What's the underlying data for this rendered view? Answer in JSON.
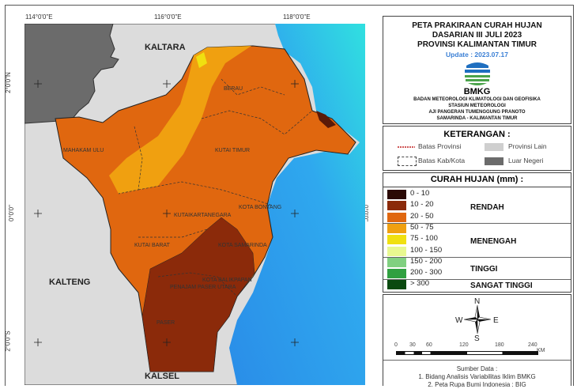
{
  "map": {
    "lon_labels": [
      "114°0'0\"E",
      "116°0'0\"E",
      "118°0'0\"E"
    ],
    "lat_labels": [
      "2°0'0\"N",
      "0°0'0\"",
      "2°0'0\"S"
    ],
    "regions": {
      "kaltara": "KALTARA",
      "kalteng": "KALTENG",
      "kalsel": "KALSEL",
      "berau": "BERAU",
      "mahakam_ulu": "MAHAKAM ULU",
      "kutai_timur": "KUTAI TIMUR",
      "kutai_kartanegara": "KUTAIKARTANEGARA",
      "kota_bontang": "KOTA BONTANG",
      "kutai_barat": "KUTAI BARAT",
      "kota_samarinda": "KOTA SAMARINDA",
      "kota_balikpapan": "KOTA BALIKPAPAN",
      "penajam": "PENAJAM PASER UTARA",
      "paser": "PASER"
    }
  },
  "title": {
    "line1": "PETA PRAKIRAAN CURAH HUJAN",
    "line2": "DASARIAN III JULI 2023",
    "line3": "PROVINSI KALIMANTAN TIMUR",
    "update": "Update : 2023.07.17",
    "logo_text": "BMKG",
    "org1": "BADAN METEOROLOGI KLIMATOLOGI DAN GEOFISIKA",
    "org2": "STASIUN METEOROLOGI",
    "org3": "AJI PANGERAN TUMENGGUNG PRANOTO",
    "org4": "SAMARINDA - KALIMANTAN TIMUR"
  },
  "keterangan": {
    "heading": "KETERANGAN :",
    "batas_provinsi": "Batas Provinsi",
    "batas_kab": "Batas Kab/Kota",
    "provinsi_lain": "Provinsi Lain",
    "luar_negeri": "Luar Negeri"
  },
  "curah_hujan": {
    "heading": "CURAH HUJAN (mm) :",
    "classes": [
      {
        "label": "0 - 10",
        "color": "#2b0a05"
      },
      {
        "label": "10 - 20",
        "color": "#8b2a0a"
      },
      {
        "label": "20 - 50",
        "color": "#e0670f"
      },
      {
        "label": "50 - 75",
        "color": "#f0a010"
      },
      {
        "label": "75 - 100",
        "color": "#f0e010"
      },
      {
        "label": "100 - 150",
        "color": "#e8f890"
      },
      {
        "label": "150 - 200",
        "color": "#80d080"
      },
      {
        "label": "200 - 300",
        "color": "#30a040"
      },
      {
        "label": "> 300",
        "color": "#0a4a10"
      }
    ],
    "categories": [
      "RENDAH",
      "MENENGAH",
      "TINGGI",
      "SANGAT TINGGI"
    ]
  },
  "compass": {
    "n": "N",
    "s": "S",
    "e": "E",
    "w": "W"
  },
  "scale": {
    "ticks": [
      "0",
      "30",
      "60",
      "120",
      "180",
      "240"
    ],
    "unit": "KM"
  },
  "source": {
    "heading": "Sumber Data :",
    "item1": "1. Bidang Analisis Variabilitas Iklim BMKG",
    "item2": "2. Peta Rupa Bumi Indonesia : BIG"
  }
}
